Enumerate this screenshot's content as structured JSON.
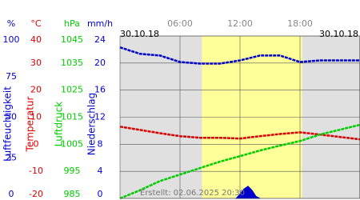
{
  "chart_data": {
    "type": "line",
    "date_left": "30.10.18",
    "date_right": "30.10.18",
    "footer": "Erstellt: 02.06.2025 20:30",
    "xlim": [
      0,
      24
    ],
    "xticks": [
      {
        "value": 6,
        "label": "06:00"
      },
      {
        "value": 12,
        "label": "12:00"
      },
      {
        "value": 18,
        "label": "18:00"
      }
    ],
    "daylight": [
      8.2,
      18.2
    ],
    "grid": true,
    "axes": [
      {
        "unit": "%",
        "title": "Luftfeuchtigkeit",
        "color": "#0000cc",
        "lim": [
          0,
          100
        ],
        "ticks": [
          0,
          25,
          50,
          75,
          100
        ]
      },
      {
        "unit": "°C",
        "title": "Temperatur",
        "color": "#dd0000",
        "lim": [
          -20,
          40
        ],
        "ticks": [
          -20,
          -10,
          0,
          10,
          20,
          30,
          40
        ]
      },
      {
        "unit": "hPa",
        "title": "Luftdruck",
        "color": "#00cc00",
        "lim": [
          985,
          1045
        ],
        "ticks": [
          985,
          995,
          1005,
          1015,
          1025,
          1035,
          1045
        ]
      },
      {
        "unit": "mm/h",
        "title": "Niederschlag",
        "color": "#0000cc",
        "lim": [
          0,
          24
        ],
        "ticks": [
          0,
          4,
          8,
          12,
          16,
          20,
          24
        ]
      }
    ],
    "series": [
      {
        "axis": 0,
        "style": "line",
        "color": "#0000cc",
        "x": [
          0,
          2,
          4,
          6,
          8,
          10,
          12,
          14,
          16,
          18,
          20,
          22,
          24
        ],
        "values": [
          93,
          89,
          88,
          84,
          83,
          83,
          85,
          88,
          88,
          84,
          85,
          85,
          85
        ]
      },
      {
        "axis": 1,
        "style": "line",
        "color": "#dd0000",
        "x": [
          0,
          2,
          4,
          6,
          8,
          10,
          12,
          14,
          16,
          18,
          20,
          22,
          24
        ],
        "values": [
          6.5,
          5.3,
          4.1,
          3.0,
          2.4,
          2.4,
          2.1,
          3.0,
          3.8,
          4.4,
          3.6,
          2.7,
          1.8
        ]
      },
      {
        "axis": 2,
        "style": "line",
        "color": "#00cc00",
        "x": [
          0,
          2,
          4,
          6,
          8,
          10,
          12,
          14,
          16,
          18,
          20,
          22,
          24
        ],
        "values": [
          985,
          988,
          991.4,
          993.8,
          996.2,
          998.6,
          1000.6,
          1002.7,
          1004.5,
          1006.2,
          1008.6,
          1010.4,
          1012.2
        ]
      },
      {
        "axis": 3,
        "style": "area",
        "color": "#0000cc",
        "x": [
          11.6,
          12,
          12.4,
          12.8,
          13.2,
          13.6,
          14
        ],
        "values": [
          0,
          0.6,
          1.4,
          1.8,
          1.2,
          0.3,
          0
        ]
      }
    ]
  }
}
